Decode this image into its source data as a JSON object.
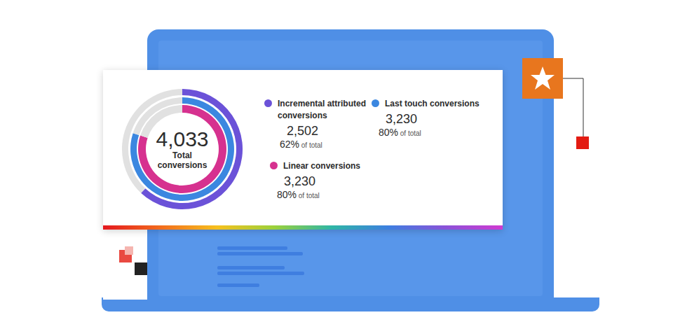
{
  "chart_data": {
    "type": "donut",
    "center_value": 4033,
    "center_text": "Total conversions",
    "share_note": "of total",
    "series": [
      {
        "name": "Incremental attributed conversions",
        "color": "#6b52d8",
        "value": 2502,
        "share": 62,
        "share_label": "62%"
      },
      {
        "name": "Last touch conversions",
        "color": "#3b87e0",
        "value": 3230,
        "share": 80,
        "share_label": "80%"
      },
      {
        "name": "Linear conversions",
        "color": "#d6318f",
        "value": 3230,
        "share": 80,
        "share_label": "80%"
      }
    ]
  }
}
